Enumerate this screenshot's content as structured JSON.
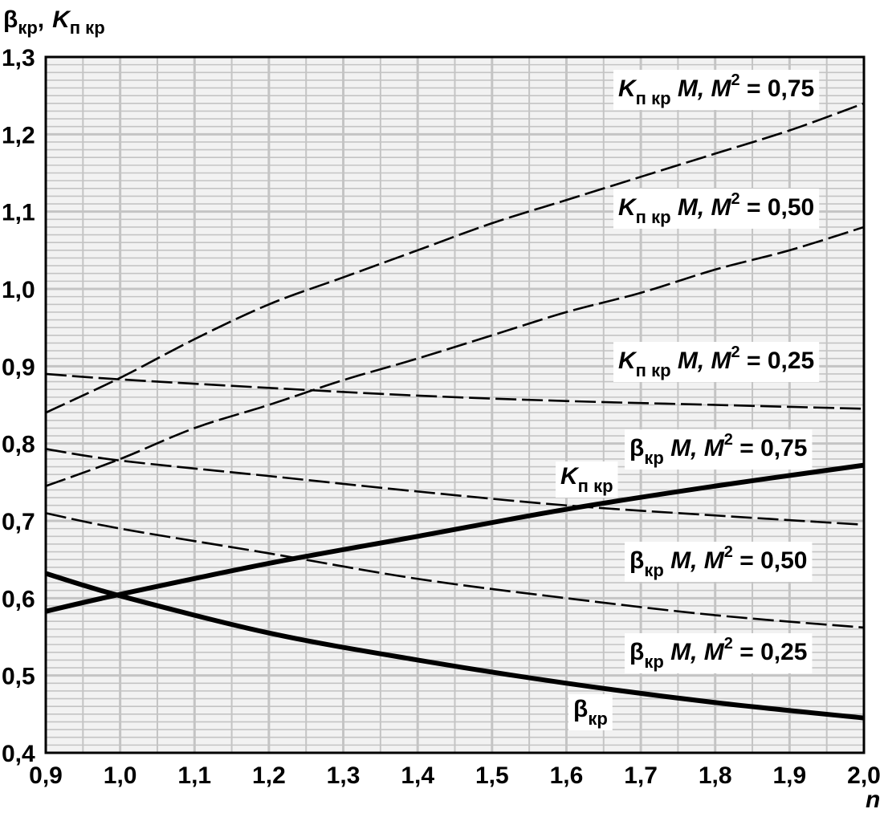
{
  "chart_data": {
    "type": "line",
    "y_axis_title": {
      "beta": "β",
      "beta_sub": "кр",
      "sep": ",",
      "k": "K",
      "k_sub": "п кр"
    },
    "x_axis_title": "n",
    "xlim": [
      0.9,
      2.0
    ],
    "ylim": [
      0.4,
      1.3
    ],
    "x_ticks": [
      "0,9",
      "1,0",
      "1,1",
      "1,2",
      "1,3",
      "1,4",
      "1,5",
      "1,6",
      "1,7",
      "1,8",
      "1,9",
      "2,0"
    ],
    "y_ticks": [
      "0,4",
      "0,5",
      "0,6",
      "0,7",
      "0,8",
      "0,9",
      "1,0",
      "1,1",
      "1,2",
      "1,3"
    ],
    "grid": true,
    "series": [
      {
        "id": "k_m075",
        "style": "dashed",
        "label": {
          "sym": "K",
          "sub": "п кр",
          "rest": " M, M",
          "sup": "2",
          "tail": " = 0,75"
        },
        "x": [
          0.9,
          1.0,
          1.1,
          1.2,
          1.3,
          1.4,
          1.5,
          1.6,
          1.7,
          1.8,
          1.9,
          2.0
        ],
        "y": [
          0.84,
          0.885,
          0.935,
          0.98,
          1.015,
          1.05,
          1.085,
          1.115,
          1.145,
          1.175,
          1.205,
          1.24
        ]
      },
      {
        "id": "k_m050",
        "style": "dashed",
        "label": {
          "sym": "K",
          "sub": "п кр",
          "rest": " M, M",
          "sup": "2",
          "tail": " = 0,50"
        },
        "x": [
          0.9,
          1.0,
          1.1,
          1.2,
          1.3,
          1.4,
          1.5,
          1.6,
          1.7,
          1.8,
          1.9,
          2.0
        ],
        "y": [
          0.745,
          0.78,
          0.82,
          0.85,
          0.882,
          0.91,
          0.94,
          0.97,
          0.995,
          1.025,
          1.05,
          1.08
        ]
      },
      {
        "id": "k_m025",
        "style": "dashed",
        "label": {
          "sym": "K",
          "sub": "п кр",
          "rest": " M, M",
          "sup": "2",
          "tail": " = 0,25"
        },
        "x": [
          0.9,
          1.0,
          1.2,
          1.4,
          1.6,
          1.8,
          2.0
        ],
        "y": [
          0.89,
          0.883,
          0.872,
          0.862,
          0.855,
          0.85,
          0.845
        ]
      },
      {
        "id": "b_m075",
        "style": "dashed",
        "label": {
          "sym": "β",
          "sub": "кр",
          "rest": " M, M",
          "sup": "2",
          "tail": " = 0,75"
        },
        "x": [
          0.9,
          1.0,
          1.2,
          1.4,
          1.6,
          1.8,
          2.0
        ],
        "y": [
          0.793,
          0.778,
          0.758,
          0.738,
          0.72,
          0.707,
          0.695
        ]
      },
      {
        "id": "b_m050",
        "style": "dashed",
        "label": {
          "sym": "β",
          "sub": "кр",
          "rest": " M, M",
          "sup": "2",
          "tail": " = 0,50"
        },
        "x": [
          0.9,
          1.0,
          1.2,
          1.4,
          1.6,
          1.8,
          2.0
        ],
        "y": [
          0.71,
          0.69,
          0.658,
          0.625,
          0.6,
          0.578,
          0.562
        ]
      },
      {
        "id": "k_kr",
        "style": "bold",
        "label": {
          "sym": "K",
          "sub": "п кр",
          "rest": "",
          "sup": "",
          "tail": ""
        },
        "x": [
          0.9,
          1.0,
          1.2,
          1.4,
          1.6,
          1.8,
          2.0
        ],
        "y": [
          0.583,
          0.605,
          0.645,
          0.68,
          0.715,
          0.745,
          0.772
        ]
      },
      {
        "id": "b_kr",
        "style": "bold",
        "label": {
          "sym": "β",
          "sub": "кр",
          "rest": "",
          "sup": "",
          "tail": ""
        },
        "x": [
          0.9,
          1.0,
          1.2,
          1.4,
          1.6,
          1.8,
          2.0
        ],
        "y": [
          0.632,
          0.603,
          0.555,
          0.52,
          0.49,
          0.465,
          0.445
        ]
      }
    ],
    "free_labels": [
      {
        "id": "b_m025_label",
        "sym": "β",
        "sub": "кр",
        "rest": " M, M",
        "sup": "2",
        "tail": " = 0,25"
      }
    ]
  }
}
